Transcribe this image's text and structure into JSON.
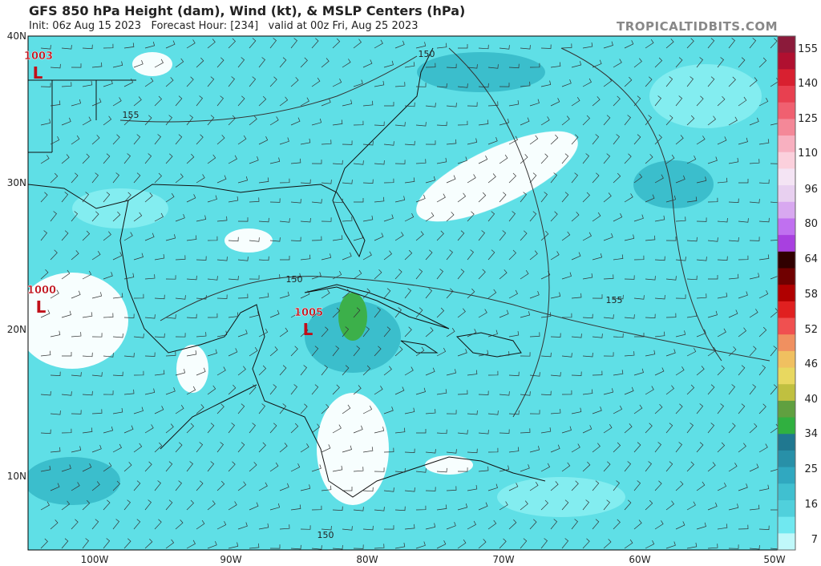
{
  "header": {
    "title": "GFS 850 hPa Height (dam), Wind (kt), & MSLP Centers (hPa)",
    "subtitle": "Init: 06z Aug 15 2023   Forecast Hour: [234]   valid at 00z Fri, Aug 25 2023",
    "site": "TROPICALTIDBITS.COM"
  },
  "map": {
    "lat_labels": [
      "40N",
      "30N",
      "20N",
      "10N"
    ],
    "lon_labels": [
      "100W",
      "90W",
      "80W",
      "70W",
      "60W",
      "50W"
    ],
    "lows": [
      {
        "pressure": "1003",
        "symbol": "L"
      },
      {
        "pressure": "1000",
        "symbol": "L"
      },
      {
        "pressure": "1005",
        "symbol": "L"
      }
    ],
    "contour_labels": [
      "155",
      "150",
      "150",
      "155",
      "150"
    ]
  },
  "colorbar": {
    "labels": [
      "155",
      "140",
      "125",
      "110",
      "96",
      "80",
      "64",
      "58",
      "52",
      "46",
      "40",
      "34",
      "25",
      "16",
      "7"
    ]
  }
}
